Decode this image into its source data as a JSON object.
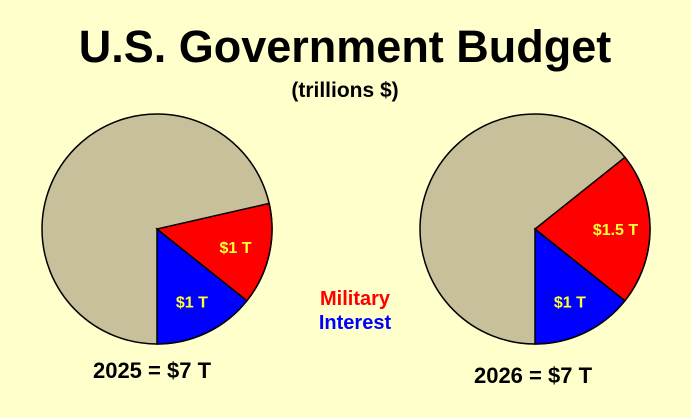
{
  "chart_data": {
    "type": "pie",
    "title": "U.S. Government Budget",
    "subtitle": "(trillions $)",
    "legend": [
      {
        "label": "Military",
        "color": "#ff0000"
      },
      {
        "label": "Interest",
        "color": "#0000ff"
      }
    ],
    "legend_placement": "bottom-center",
    "other_color": "#c8bf9b",
    "label_color": "#ffff33",
    "pies": [
      {
        "caption": "2025 = $7 T",
        "total": 7,
        "slices": [
          {
            "series": "Interest",
            "value": 1,
            "text": "$1 T"
          },
          {
            "series": "Military",
            "value": 1,
            "text": "$1 T"
          }
        ]
      },
      {
        "caption": "2026 = $7 T",
        "total": 7,
        "slices": [
          {
            "series": "Interest",
            "value": 1,
            "text": "$1 T"
          },
          {
            "series": "Military",
            "value": 1.5,
            "text": "$1.5 T"
          }
        ]
      }
    ]
  }
}
